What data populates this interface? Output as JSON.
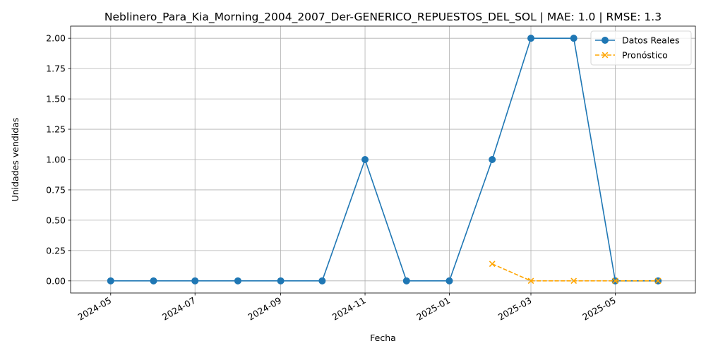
{
  "chart_data": {
    "type": "line",
    "title": "Neblinero_Para_Kia_Morning_2004_2007_Der-GENERICO_REPUESTOS_DEL_SOL | MAE: 1.0 | RMSE: 1.3",
    "xlabel": "Fecha",
    "ylabel": "Unidades vendidas",
    "ylim": [
      -0.1,
      2.1
    ],
    "xlim": [
      "2024-04-02",
      "2025-06-28"
    ],
    "grid": true,
    "legend_position": "top-right",
    "x_ticks": [
      "2024-05-01",
      "2024-07-01",
      "2024-09-01",
      "2024-11-01",
      "2025-01-01",
      "2025-03-01",
      "2025-05-01"
    ],
    "x_tick_labels": [
      "2024-05",
      "2024-07",
      "2024-09",
      "2024-11",
      "2025-01",
      "2025-03",
      "2025-05"
    ],
    "y_ticks": [
      0.0,
      0.25,
      0.5,
      0.75,
      1.0,
      1.25,
      1.5,
      1.75,
      2.0
    ],
    "y_tick_labels": [
      "0.00",
      "0.25",
      "0.50",
      "0.75",
      "1.00",
      "1.25",
      "1.50",
      "1.75",
      "2.00"
    ],
    "series": [
      {
        "name": "Datos Reales",
        "color": "#1f77b4",
        "marker": "circle",
        "line_style": "solid",
        "x": [
          "2024-05-01",
          "2024-06-01",
          "2024-07-01",
          "2024-08-01",
          "2024-09-01",
          "2024-10-01",
          "2024-11-01",
          "2024-12-01",
          "2025-01-01",
          "2025-02-01",
          "2025-03-01",
          "2025-04-01",
          "2025-05-01",
          "2025-06-01"
        ],
        "values": [
          0,
          0,
          0,
          0,
          0,
          0,
          1,
          0,
          0,
          1,
          2,
          2,
          0,
          0
        ]
      },
      {
        "name": "Pronóstico",
        "color": "#ffa500",
        "marker": "x",
        "line_style": "dashed",
        "x": [
          "2025-02-01",
          "2025-03-01",
          "2025-04-01",
          "2025-05-01",
          "2025-06-01"
        ],
        "values": [
          0.14,
          0,
          0,
          0,
          0
        ]
      }
    ]
  }
}
